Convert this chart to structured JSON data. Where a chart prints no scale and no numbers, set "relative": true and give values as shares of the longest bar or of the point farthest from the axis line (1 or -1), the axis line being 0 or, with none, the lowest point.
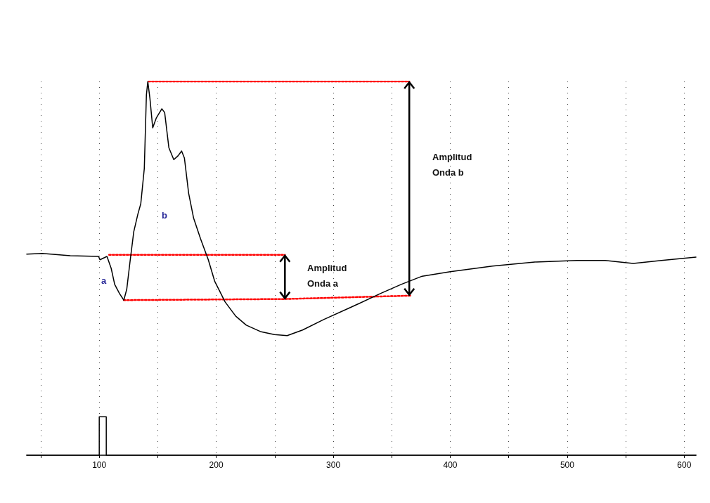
{
  "chart_data": {
    "type": "line",
    "relative": true,
    "xlim": [
      38,
      610
    ],
    "xticks": [
      {
        "value": 50,
        "label": null
      },
      100,
      {
        "value": 150,
        "label": null
      },
      200,
      {
        "value": 250,
        "label": null
      },
      300,
      {
        "value": 350,
        "label": null
      },
      400,
      {
        "value": 450,
        "label": null
      },
      500,
      {
        "value": 550,
        "label": null
      },
      600
    ],
    "grid": "x",
    "marker": "none",
    "line_style": "solid",
    "series": [
      {
        "color": "#000000",
        "x": [
          38,
          51.3,
          75.3,
          99.4,
          100.6,
          106.6,
          110.2,
          113.2,
          117.4,
          121,
          123.5,
          126.5,
          129.5,
          133,
          135.5,
          138.5,
          140.3,
          141.5,
          143.3,
          145.7,
          148.7,
          153.5,
          155.9,
          159.5,
          163.7,
          167.3,
          170.4,
          172.8,
          176.4,
          180.6,
          186.6,
          193.2,
          198.6,
          207.6,
          216.7,
          225.7,
          237.7,
          249.7,
          260.6,
          273.8,
          291.8,
          315.9,
          339.9,
          358,
          376,
          400,
          436.1,
          472.2,
          508.3,
          532.4,
          556.4,
          580.5,
          610
        ],
        "values": [
          0.538,
          0.54,
          0.534,
          0.532,
          0.523,
          0.532,
          0.5,
          0.457,
          0.432,
          0.415,
          0.444,
          0.523,
          0.598,
          0.645,
          0.673,
          0.767,
          0.964,
          1,
          0.955,
          0.876,
          0.902,
          0.927,
          0.917,
          0.823,
          0.791,
          0.801,
          0.814,
          0.795,
          0.701,
          0.635,
          0.579,
          0.523,
          0.466,
          0.41,
          0.372,
          0.348,
          0.331,
          0.323,
          0.32,
          0.335,
          0.363,
          0.397,
          0.432,
          0.457,
          0.479,
          0.491,
          0.506,
          0.517,
          0.521,
          0.521,
          0.513,
          0.521,
          0.53
        ]
      },
      {
        "color": "#000000",
        "x": [
          38,
          100,
          100,
          106,
          106,
          610
        ],
        "values": [
          0,
          0,
          0.103,
          0.103,
          0,
          0
        ]
      },
      {
        "color": "#ff0000",
        "line_style": "dotted",
        "x": [
          142.1,
          365
        ],
        "values": [
          1,
          1
        ]
      },
      {
        "color": "#ff0000",
        "line_style": "dotted",
        "x": [
          108.4,
          258.7
        ],
        "values": [
          0.536,
          0.536
        ]
      },
      {
        "color": "#ff0000",
        "line_style": "dotted",
        "x": [
          121,
          258.7,
          366.2
        ],
        "values": [
          0.415,
          0.418,
          0.427
        ]
      }
    ],
    "annotations": [
      "a",
      "b",
      "Amplitud\nOnda a",
      "Amplitud\nOnda b"
    ]
  }
}
